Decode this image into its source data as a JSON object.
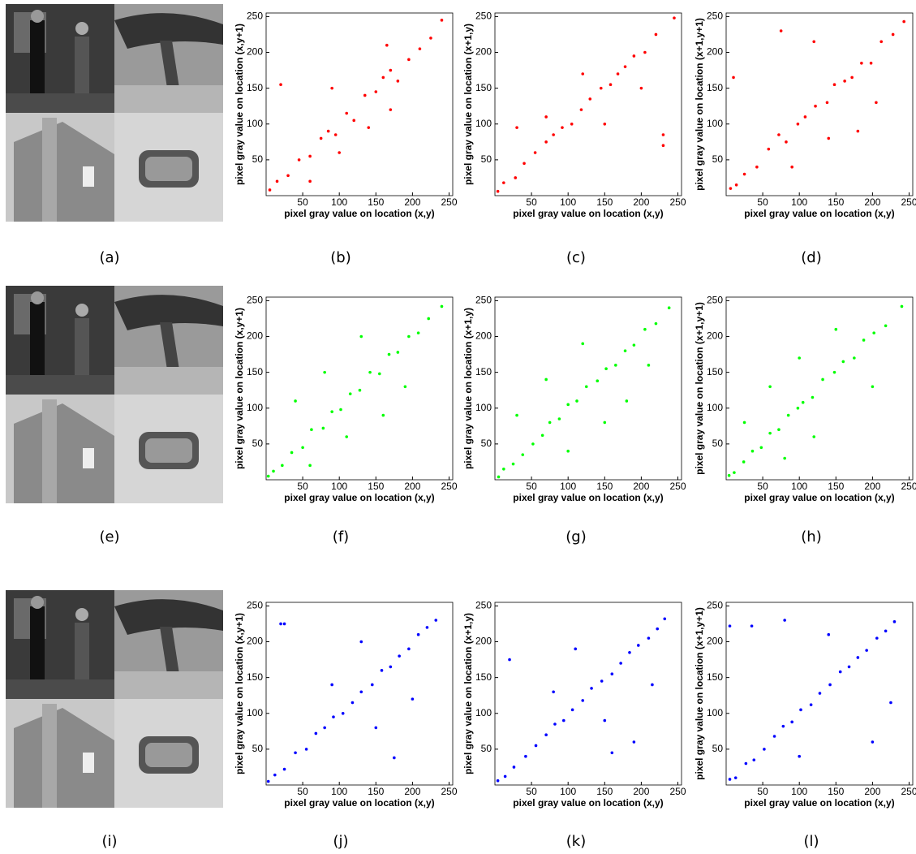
{
  "panel_labels": [
    "(a)",
    "(b)",
    "(c)",
    "(d)",
    "(e)",
    "(f)",
    "(g)",
    "(h)",
    "(i)",
    "(j)",
    "(k)",
    "(l)"
  ],
  "chart_data": [
    {
      "type": "scatter",
      "color": "#ff0000",
      "xlabel": "pixel gray value on location (x,y)",
      "ylabel": "pixel gray value on location (x,y+1)",
      "xlim": [
        0,
        255
      ],
      "ylim": [
        0,
        255
      ],
      "xticks": [
        50,
        100,
        150,
        200,
        250
      ],
      "yticks": [
        50,
        100,
        150,
        200,
        250
      ],
      "x": [
        5,
        15,
        30,
        45,
        60,
        75,
        85,
        95,
        110,
        120,
        135,
        150,
        160,
        170,
        180,
        195,
        210,
        225,
        240,
        20,
        90,
        170,
        140,
        60,
        100,
        165
      ],
      "y": [
        8,
        20,
        28,
        50,
        55,
        80,
        90,
        85,
        115,
        105,
        140,
        145,
        165,
        175,
        160,
        190,
        205,
        220,
        245,
        155,
        150,
        120,
        95,
        20,
        60,
        210
      ]
    },
    {
      "type": "scatter",
      "color": "#ff0000",
      "xlabel": "pixel gray value on location (x,y)",
      "ylabel": "pixel gray value on location (x+1,y)",
      "xlim": [
        0,
        255
      ],
      "ylim": [
        0,
        255
      ],
      "xticks": [
        50,
        100,
        150,
        200,
        250
      ],
      "yticks": [
        50,
        100,
        150,
        200,
        250
      ],
      "x": [
        4,
        12,
        28,
        40,
        55,
        70,
        80,
        92,
        105,
        118,
        130,
        145,
        158,
        168,
        178,
        190,
        205,
        220,
        245,
        30,
        230,
        230,
        120,
        70,
        150,
        200
      ],
      "y": [
        6,
        18,
        25,
        45,
        60,
        75,
        85,
        95,
        100,
        120,
        135,
        150,
        155,
        170,
        180,
        195,
        200,
        225,
        248,
        95,
        85,
        70,
        170,
        110,
        100,
        150
      ]
    },
    {
      "type": "scatter",
      "color": "#ff0000",
      "xlabel": "pixel gray value on location (x,y)",
      "ylabel": "pixel gray value on location (x+1,y+1)",
      "xlim": [
        0,
        255
      ],
      "ylim": [
        0,
        255
      ],
      "xticks": [
        50,
        100,
        150,
        200,
        250
      ],
      "yticks": [
        50,
        100,
        150,
        200,
        250
      ],
      "x": [
        6,
        14,
        25,
        42,
        58,
        72,
        82,
        98,
        108,
        122,
        138,
        148,
        162,
        172,
        185,
        198,
        212,
        228,
        243,
        10,
        75,
        120,
        180,
        90,
        140,
        205
      ],
      "y": [
        10,
        15,
        30,
        40,
        65,
        85,
        75,
        100,
        110,
        125,
        130,
        155,
        160,
        165,
        185,
        185,
        215,
        225,
        243,
        165,
        230,
        215,
        90,
        40,
        80,
        130
      ]
    },
    {
      "type": "scatter",
      "color": "#00ff00",
      "xlabel": "pixel gray value on location (x,y)",
      "ylabel": "pixel gray value on location (x,y+1)",
      "xlim": [
        0,
        255
      ],
      "ylim": [
        0,
        255
      ],
      "xticks": [
        50,
        100,
        150,
        200,
        250
      ],
      "yticks": [
        50,
        100,
        150,
        200,
        250
      ],
      "x": [
        3,
        10,
        22,
        35,
        50,
        62,
        78,
        90,
        102,
        115,
        128,
        142,
        155,
        168,
        180,
        195,
        208,
        222,
        240,
        40,
        80,
        130,
        190,
        110,
        160,
        60
      ],
      "y": [
        5,
        12,
        20,
        38,
        45,
        70,
        72,
        95,
        98,
        120,
        125,
        150,
        148,
        175,
        178,
        200,
        205,
        225,
        242,
        110,
        150,
        200,
        130,
        60,
        90,
        20
      ]
    },
    {
      "type": "scatter",
      "color": "#00ff00",
      "xlabel": "pixel gray value on location (x,y)",
      "ylabel": "pixel gray value on location (x+1,y)",
      "xlim": [
        0,
        255
      ],
      "ylim": [
        0,
        255
      ],
      "xticks": [
        50,
        100,
        150,
        200,
        250
      ],
      "yticks": [
        50,
        100,
        150,
        200,
        250
      ],
      "x": [
        5,
        12,
        25,
        38,
        52,
        65,
        75,
        88,
        100,
        112,
        125,
        140,
        152,
        165,
        178,
        190,
        205,
        220,
        238,
        30,
        70,
        120,
        180,
        150,
        100,
        210
      ],
      "y": [
        4,
        15,
        22,
        35,
        50,
        62,
        80,
        85,
        105,
        110,
        130,
        138,
        155,
        160,
        180,
        188,
        210,
        218,
        240,
        90,
        140,
        190,
        110,
        80,
        40,
        160
      ]
    },
    {
      "type": "scatter",
      "color": "#00ff00",
      "xlabel": "pixel gray value on location (x,y)",
      "ylabel": "pixel gray value on location (x+1,y+1)",
      "xlim": [
        0,
        255
      ],
      "ylim": [
        0,
        255
      ],
      "xticks": [
        50,
        100,
        150,
        200,
        250
      ],
      "yticks": [
        50,
        100,
        150,
        200,
        250
      ],
      "x": [
        4,
        11,
        24,
        36,
        48,
        60,
        72,
        85,
        98,
        105,
        118,
        132,
        148,
        160,
        175,
        188,
        202,
        218,
        240,
        25,
        60,
        100,
        150,
        200,
        120,
        80
      ],
      "y": [
        6,
        10,
        25,
        40,
        45,
        65,
        70,
        90,
        100,
        108,
        115,
        140,
        150,
        165,
        170,
        195,
        205,
        215,
        242,
        80,
        130,
        170,
        210,
        130,
        60,
        30
      ]
    },
    {
      "type": "scatter",
      "color": "#0000ff",
      "xlabel": "pixel gray value on location (x,y)",
      "ylabel": "pixel gray value on location (x,y+1)",
      "xlim": [
        0,
        255
      ],
      "ylim": [
        0,
        255
      ],
      "xticks": [
        50,
        100,
        150,
        200,
        250
      ],
      "yticks": [
        50,
        100,
        150,
        200,
        250
      ],
      "x": [
        3,
        12,
        25,
        40,
        55,
        68,
        80,
        92,
        105,
        118,
        130,
        145,
        158,
        170,
        182,
        195,
        208,
        220,
        232,
        20,
        25,
        175,
        130,
        90,
        150,
        200
      ],
      "y": [
        5,
        14,
        22,
        45,
        50,
        72,
        80,
        95,
        100,
        115,
        130,
        140,
        160,
        165,
        180,
        190,
        210,
        220,
        230,
        225,
        225,
        38,
        200,
        140,
        80,
        120
      ]
    },
    {
      "type": "scatter",
      "color": "#0000ff",
      "xlabel": "pixel gray value on location (x,y)",
      "ylabel": "pixel gray value on location (x+1,y)",
      "xlim": [
        0,
        255
      ],
      "ylim": [
        0,
        255
      ],
      "xticks": [
        50,
        100,
        150,
        200,
        250
      ],
      "yticks": [
        50,
        100,
        150,
        200,
        250
      ],
      "x": [
        4,
        14,
        26,
        42,
        56,
        70,
        82,
        94,
        106,
        120,
        132,
        146,
        160,
        172,
        184,
        196,
        210,
        222,
        232,
        20,
        160,
        190,
        110,
        80,
        150,
        215
      ],
      "y": [
        6,
        12,
        25,
        40,
        55,
        70,
        85,
        90,
        105,
        118,
        135,
        145,
        155,
        170,
        185,
        195,
        205,
        218,
        232,
        175,
        45,
        60,
        190,
        130,
        90,
        140
      ]
    },
    {
      "type": "scatter",
      "color": "#0000ff",
      "xlabel": "pixel gray value on location (x,y)",
      "ylabel": "pixel gray value on location (x+1,y+1)",
      "xlim": [
        0,
        255
      ],
      "ylim": [
        0,
        255
      ],
      "xticks": [
        50,
        100,
        150,
        200,
        250
      ],
      "yticks": [
        50,
        100,
        150,
        200,
        250
      ],
      "x": [
        5,
        13,
        27,
        38,
        52,
        66,
        78,
        90,
        102,
        116,
        128,
        142,
        156,
        168,
        180,
        192,
        206,
        218,
        230,
        5,
        35,
        80,
        200,
        140,
        100,
        225
      ],
      "y": [
        8,
        10,
        30,
        35,
        50,
        68,
        82,
        88,
        105,
        112,
        128,
        140,
        158,
        165,
        178,
        188,
        205,
        215,
        228,
        222,
        222,
        230,
        60,
        210,
        40,
        115
      ]
    }
  ]
}
